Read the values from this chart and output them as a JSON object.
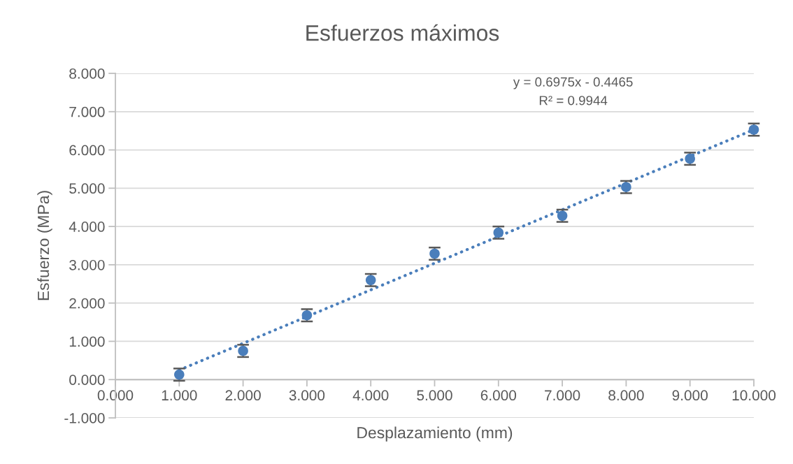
{
  "chart_data": {
    "type": "scatter",
    "title": "Esfuerzos máximos",
    "xlabel": "Desplazamiento (mm)",
    "ylabel": "Esfuerzo (MPa)",
    "x": [
      1,
      2,
      3,
      4,
      5,
      6,
      7,
      8,
      9,
      10
    ],
    "series": [
      {
        "color": "#4a7ebb",
        "marker": "circle",
        "values": [
          0.13,
          0.75,
          1.68,
          2.6,
          3.29,
          3.84,
          4.28,
          5.03,
          5.77,
          6.53
        ],
        "errors": [
          0.16,
          0.16,
          0.16,
          0.16,
          0.16,
          0.16,
          0.16,
          0.16,
          0.16,
          0.16
        ]
      },
      {
        "type": "line",
        "color": "#4a7ebb",
        "marker": "none",
        "line_style": "dotted",
        "x": [
          1,
          10
        ],
        "values": [
          0.25,
          6.53
        ]
      }
    ],
    "xlim": [
      0,
      10
    ],
    "ylim": [
      -1,
      8
    ],
    "xticks": [
      {
        "value": 0,
        "label": "0.000"
      },
      {
        "value": 1,
        "label": "1.000"
      },
      {
        "value": 2,
        "label": "2.000"
      },
      {
        "value": 3,
        "label": "3.000"
      },
      {
        "value": 4,
        "label": "4.000"
      },
      {
        "value": 5,
        "label": "5.000"
      },
      {
        "value": 6,
        "label": "6.000"
      },
      {
        "value": 7,
        "label": "7.000"
      },
      {
        "value": 8,
        "label": "8.000"
      },
      {
        "value": 9,
        "label": "9.000"
      },
      {
        "value": 10,
        "label": "10.000"
      }
    ],
    "yticks": [
      {
        "value": -1,
        "label": "-1.000"
      },
      {
        "value": 0,
        "label": "0.000"
      },
      {
        "value": 1,
        "label": "1.000"
      },
      {
        "value": 2,
        "label": "2.000"
      },
      {
        "value": 3,
        "label": "3.000"
      },
      {
        "value": 4,
        "label": "4.000"
      },
      {
        "value": 5,
        "label": "5.000"
      },
      {
        "value": 6,
        "label": "6.000"
      },
      {
        "value": 7,
        "label": "7.000"
      },
      {
        "value": 8,
        "label": "8.000"
      }
    ],
    "grid": "y",
    "legend": false,
    "annotations": [
      "y = 0.6975x - 0.4465",
      "R² = 0.9944"
    ]
  }
}
